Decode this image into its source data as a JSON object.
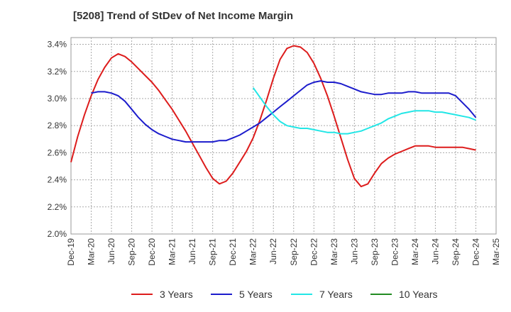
{
  "chart_data": {
    "type": "line",
    "title": "[5208]  Trend of StDev of Net Income Margin",
    "xlabel": "",
    "ylabel": "",
    "x_ticks": [
      "Dec-19",
      "Mar-20",
      "Jun-20",
      "Sep-20",
      "Dec-20",
      "Mar-21",
      "Jun-21",
      "Sep-21",
      "Dec-21",
      "Mar-22",
      "Jun-22",
      "Sep-22",
      "Dec-22",
      "Mar-23",
      "Jun-23",
      "Sep-23",
      "Dec-23",
      "Mar-24",
      "Jun-24",
      "Sep-24",
      "Dec-24",
      "Mar-25"
    ],
    "y_ticks": [
      "2.0%",
      "2.2%",
      "2.4%",
      "2.6%",
      "2.8%",
      "3.0%",
      "3.2%",
      "3.4%"
    ],
    "ylim": [
      2.0,
      3.45
    ],
    "grid": true,
    "legend_position": "bottom",
    "series": [
      {
        "name": "3 Years",
        "color": "#dd1c1c",
        "x": [
          "2019-12",
          "2020-01",
          "2020-02",
          "2020-03",
          "2020-04",
          "2020-05",
          "2020-06",
          "2020-07",
          "2020-08",
          "2020-09",
          "2020-10",
          "2020-11",
          "2020-12",
          "2021-01",
          "2021-02",
          "2021-03",
          "2021-04",
          "2021-05",
          "2021-06",
          "2021-07",
          "2021-08",
          "2021-09",
          "2021-10",
          "2021-11",
          "2021-12",
          "2022-01",
          "2022-02",
          "2022-03",
          "2022-04",
          "2022-05",
          "2022-06",
          "2022-07",
          "2022-08",
          "2022-09",
          "2022-10",
          "2022-11",
          "2022-12",
          "2023-01",
          "2023-02",
          "2023-03",
          "2023-04",
          "2023-05",
          "2023-06",
          "2023-07",
          "2023-08",
          "2023-09",
          "2023-10",
          "2023-11",
          "2023-12",
          "2024-01",
          "2024-02",
          "2024-03",
          "2024-04",
          "2024-05",
          "2024-06",
          "2024-07",
          "2024-08",
          "2024-09",
          "2024-10",
          "2024-11",
          "2024-12"
        ],
        "values": [
          2.53,
          2.72,
          2.88,
          3.02,
          3.14,
          3.23,
          3.3,
          3.33,
          3.31,
          3.27,
          3.22,
          3.17,
          3.12,
          3.06,
          2.99,
          2.92,
          2.84,
          2.76,
          2.67,
          2.58,
          2.49,
          2.41,
          2.37,
          2.39,
          2.45,
          2.53,
          2.61,
          2.71,
          2.84,
          2.99,
          3.15,
          3.29,
          3.37,
          3.39,
          3.38,
          3.34,
          3.26,
          3.15,
          3.02,
          2.87,
          2.71,
          2.55,
          2.41,
          2.35,
          2.37,
          2.45,
          2.52,
          2.56,
          2.59,
          2.61,
          2.63,
          2.65,
          2.65,
          2.65,
          2.64,
          2.64,
          2.64,
          2.64,
          2.64,
          2.63,
          2.62
        ]
      },
      {
        "name": "5 Years",
        "color": "#1c1ccc",
        "x": [
          "2020-03",
          "2020-04",
          "2020-05",
          "2020-06",
          "2020-07",
          "2020-08",
          "2020-09",
          "2020-10",
          "2020-11",
          "2020-12",
          "2021-01",
          "2021-02",
          "2021-03",
          "2021-04",
          "2021-05",
          "2021-06",
          "2021-07",
          "2021-08",
          "2021-09",
          "2021-10",
          "2021-11",
          "2021-12",
          "2022-01",
          "2022-02",
          "2022-03",
          "2022-04",
          "2022-05",
          "2022-06",
          "2022-07",
          "2022-08",
          "2022-09",
          "2022-10",
          "2022-11",
          "2022-12",
          "2023-01",
          "2023-02",
          "2023-03",
          "2023-04",
          "2023-05",
          "2023-06",
          "2023-07",
          "2023-08",
          "2023-09",
          "2023-10",
          "2023-11",
          "2023-12",
          "2024-01",
          "2024-02",
          "2024-03",
          "2024-04",
          "2024-05",
          "2024-06",
          "2024-07",
          "2024-08",
          "2024-09",
          "2024-10",
          "2024-11",
          "2024-12"
        ],
        "values": [
          3.04,
          3.05,
          3.05,
          3.04,
          3.02,
          2.98,
          2.92,
          2.86,
          2.81,
          2.77,
          2.74,
          2.72,
          2.7,
          2.69,
          2.68,
          2.68,
          2.68,
          2.68,
          2.68,
          2.69,
          2.69,
          2.71,
          2.73,
          2.76,
          2.79,
          2.82,
          2.86,
          2.9,
          2.94,
          2.98,
          3.02,
          3.06,
          3.1,
          3.12,
          3.13,
          3.12,
          3.12,
          3.11,
          3.09,
          3.07,
          3.05,
          3.04,
          3.03,
          3.03,
          3.04,
          3.04,
          3.04,
          3.05,
          3.05,
          3.04,
          3.04,
          3.04,
          3.04,
          3.04,
          3.02,
          2.97,
          2.92,
          2.86
        ]
      },
      {
        "name": "7 Years",
        "color": "#22e6e6",
        "x": [
          "2022-03",
          "2022-04",
          "2022-05",
          "2022-06",
          "2022-07",
          "2022-08",
          "2022-09",
          "2022-10",
          "2022-11",
          "2022-12",
          "2023-01",
          "2023-02",
          "2023-03",
          "2023-04",
          "2023-05",
          "2023-06",
          "2023-07",
          "2023-08",
          "2023-09",
          "2023-10",
          "2023-11",
          "2023-12",
          "2024-01",
          "2024-02",
          "2024-03",
          "2024-04",
          "2024-05",
          "2024-06",
          "2024-07",
          "2024-08",
          "2024-09",
          "2024-10",
          "2024-11",
          "2024-12"
        ],
        "values": [
          3.08,
          3.01,
          2.94,
          2.88,
          2.83,
          2.8,
          2.79,
          2.78,
          2.78,
          2.77,
          2.76,
          2.75,
          2.75,
          2.74,
          2.74,
          2.75,
          2.76,
          2.78,
          2.8,
          2.82,
          2.85,
          2.87,
          2.89,
          2.9,
          2.91,
          2.91,
          2.91,
          2.9,
          2.9,
          2.89,
          2.88,
          2.87,
          2.86,
          2.84
        ]
      },
      {
        "name": "10 Years",
        "color": "#228b22",
        "x": [],
        "values": []
      }
    ]
  }
}
